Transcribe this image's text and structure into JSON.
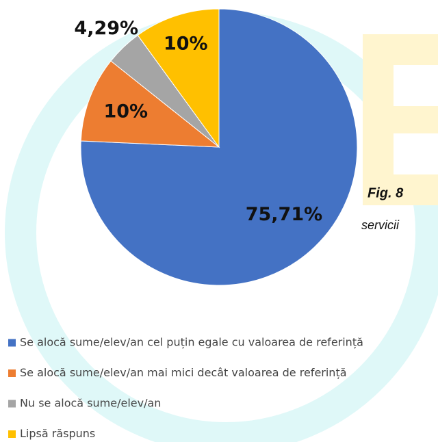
{
  "chart_data": {
    "type": "pie",
    "categories": [
      "Se alocă sume/elev/an cel puțin egale cu valoarea de referință",
      "Se alocă sume/elev/an mai mici decât valoarea de referință",
      "Nu se alocă sume/elev/an",
      "Lipsă răspuns"
    ],
    "values": [
      75.71,
      10,
      4.29,
      10
    ],
    "value_labels": [
      "75,71%",
      "10%",
      "4,29%",
      "10%"
    ],
    "colors": [
      "#4472c4",
      "#ed7d31",
      "#a5a5a5",
      "#ffc000"
    ],
    "annotations": [
      "Fig. 8",
      "servicii"
    ]
  }
}
